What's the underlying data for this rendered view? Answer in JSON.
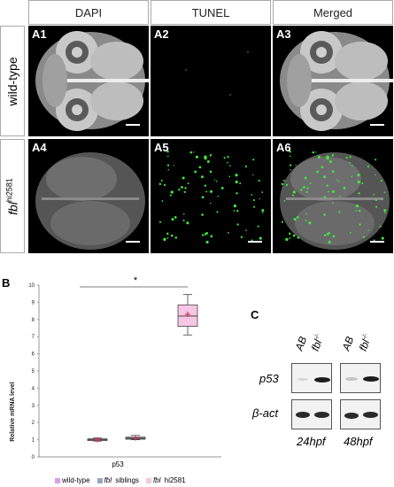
{
  "panel_a": {
    "column_headers": [
      "DAPI",
      "TUNEL",
      "Merged"
    ],
    "row_labels": [
      {
        "main": "wild-type",
        "sup": ""
      },
      {
        "main": "fbl",
        "sup": "hi2581"
      }
    ],
    "tile_labels": [
      "A1",
      "A2",
      "A3",
      "A4",
      "A5",
      "A6"
    ]
  },
  "panel_b": {
    "letter": "B",
    "significance": "*",
    "legend": [
      {
        "prefix": "",
        "label": "wild-type",
        "color": "#d9a0e8"
      },
      {
        "prefix": "fbl",
        "label": " siblings",
        "color": "#9aa6c0"
      },
      {
        "prefix": "fbl",
        "label": " hi2581",
        "color": "#f6c6e4"
      }
    ]
  },
  "panel_c": {
    "letter": "C",
    "lane_labels": [
      "AB",
      "fbl",
      "AB",
      "fbl"
    ],
    "lane_sup": "-/-",
    "row_labels": [
      "p53",
      "β-act"
    ],
    "timepoints": [
      "24hpf",
      "48hpf"
    ]
  },
  "chart_data": {
    "type": "box",
    "xlabel": "p53",
    "ylabel": "Relative mRNA level",
    "ylim": [
      0,
      10
    ],
    "yticks": [
      0,
      1,
      2,
      3,
      4,
      5,
      6,
      7,
      8,
      9,
      10
    ],
    "series": [
      {
        "name": "wild-type",
        "min": 0.92,
        "q1": 0.97,
        "median": 1.0,
        "q3": 1.05,
        "max": 1.1,
        "mean": 1.0
      },
      {
        "name": "fbl siblings",
        "min": 1.0,
        "q1": 1.03,
        "median": 1.08,
        "q3": 1.15,
        "max": 1.25,
        "mean": 1.1
      },
      {
        "name": "fbl hi2581",
        "min": 7.1,
        "q1": 7.6,
        "median": 8.2,
        "q3": 8.85,
        "max": 9.45,
        "mean": 8.3
      }
    ]
  }
}
